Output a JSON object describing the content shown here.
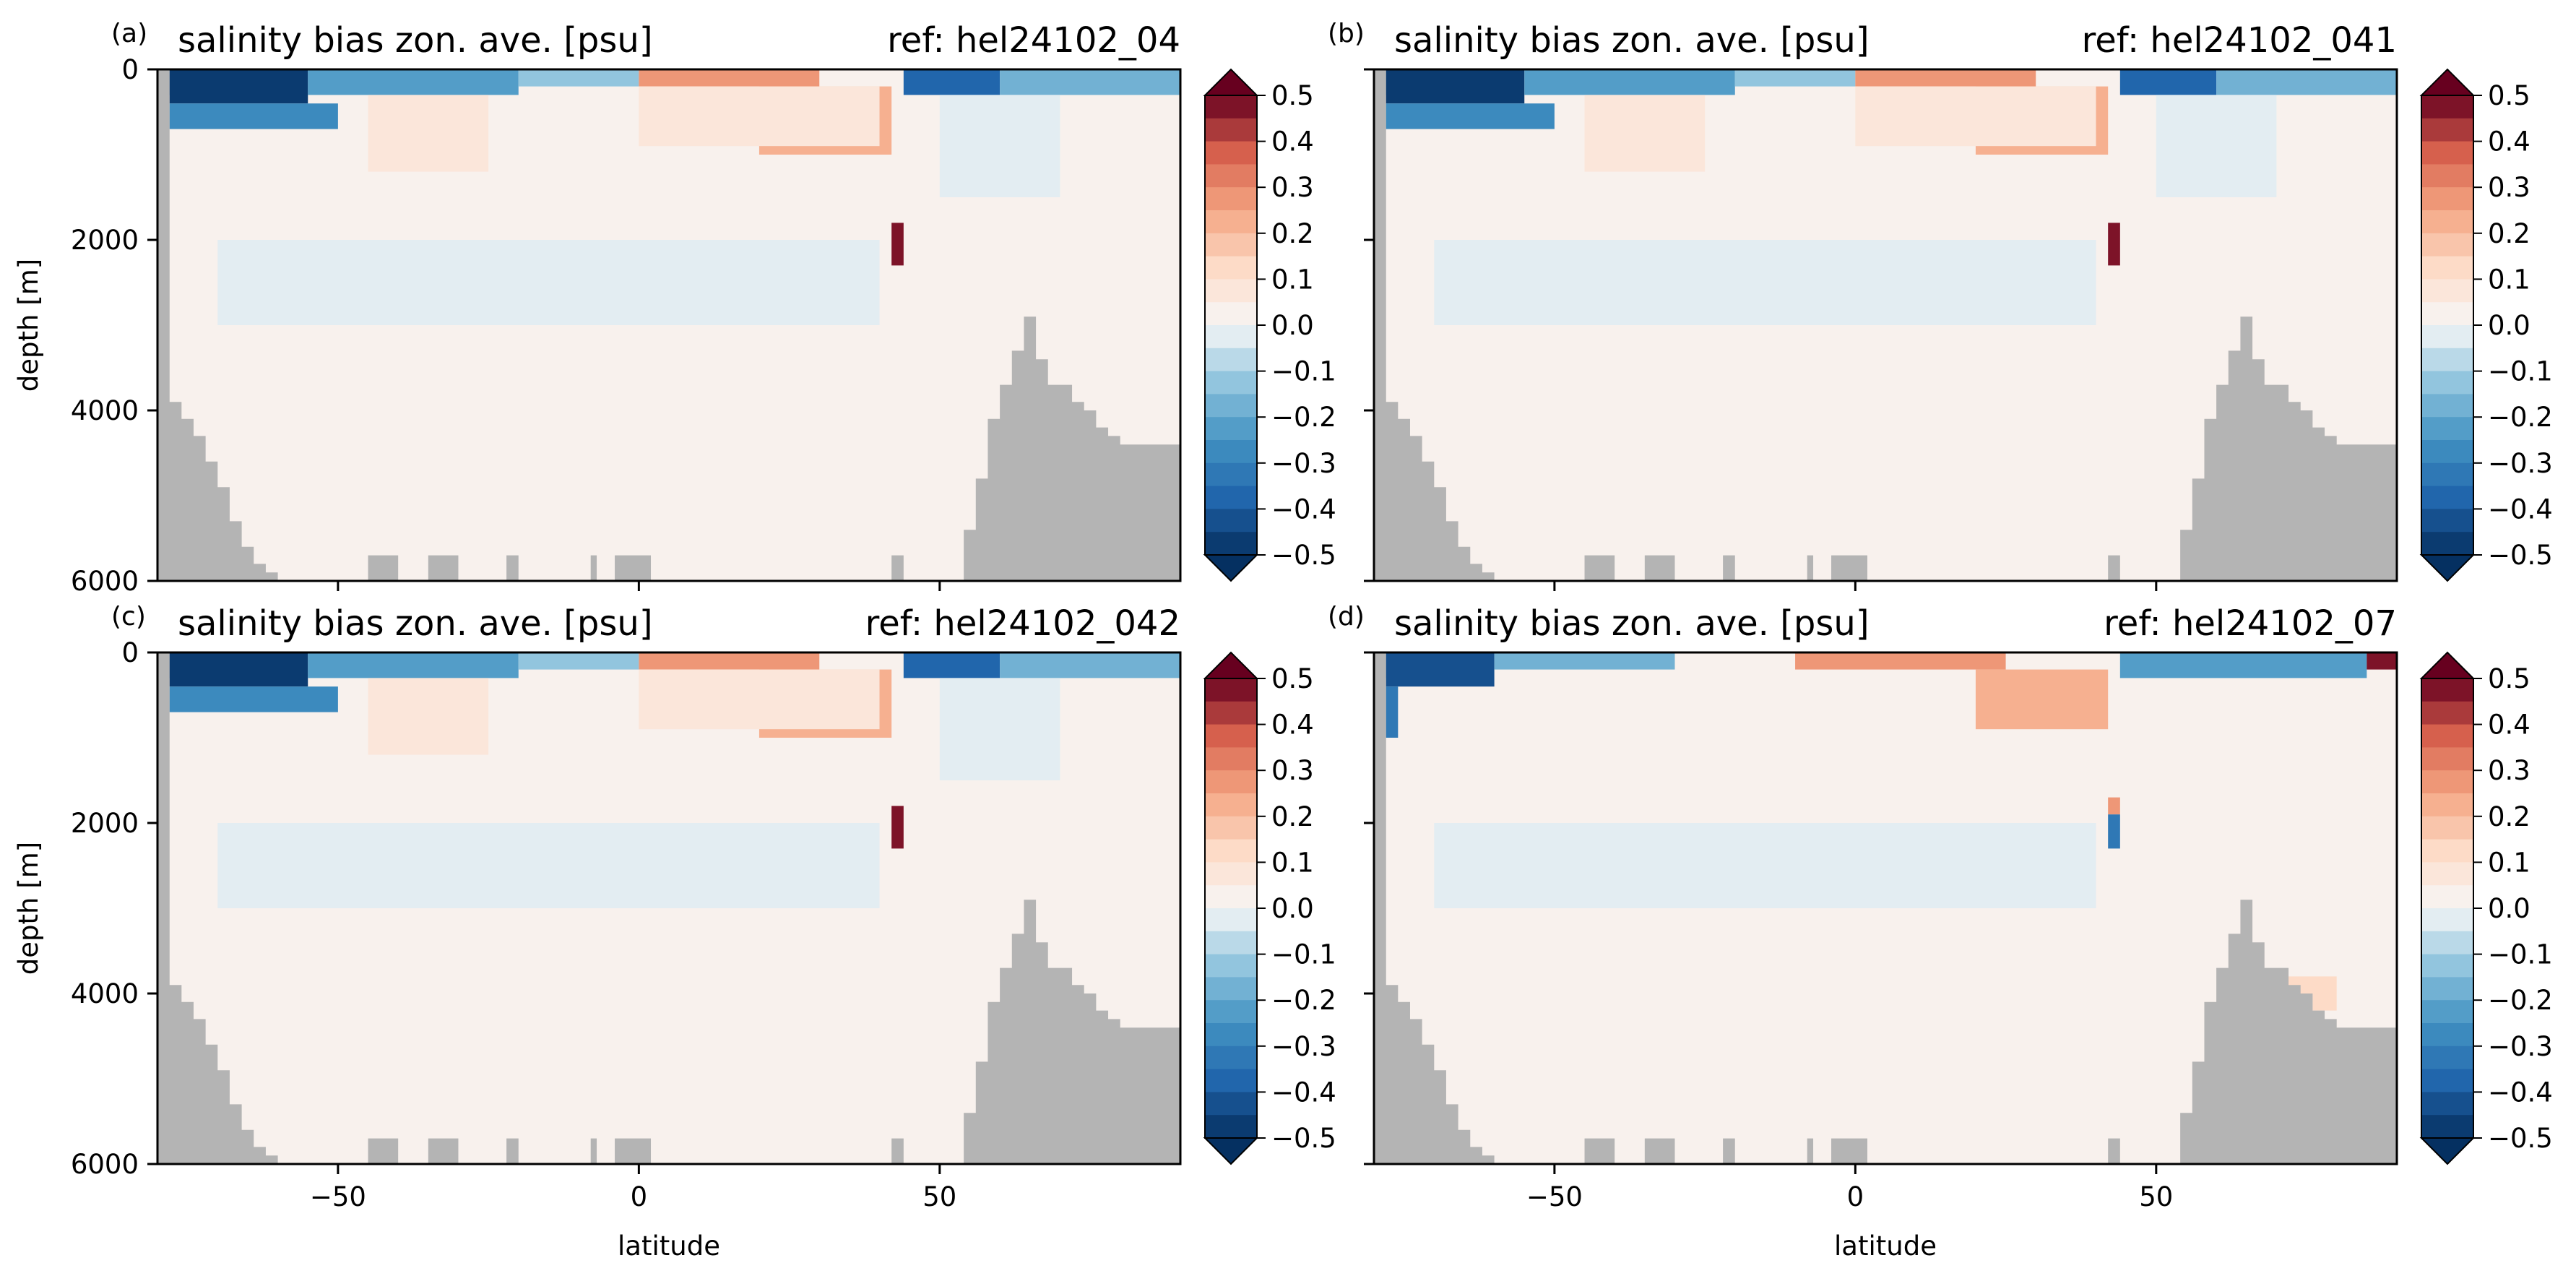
{
  "figure": {
    "shared_xlabel": "latitude",
    "shared_ylabel": "depth [m]"
  },
  "chart_data": [
    {
      "type": "heatmap",
      "panel_label": "(a)",
      "title": "salinity bias zon. ave. [psu]",
      "ref_label": "ref: hel24102_04",
      "xlim": [
        -80,
        90
      ],
      "ylim": [
        0,
        6000
      ],
      "y_inverted": true,
      "x_ticks": [
        -50,
        0,
        50
      ],
      "y_ticks": [
        0,
        2000,
        4000,
        6000
      ],
      "ylabel": "depth [m]",
      "xlabel": "",
      "show_x_ticklabels": false,
      "show_y_ticklabels": true,
      "colorbar": {
        "cmap": "RdBu_r",
        "vmin": -0.5,
        "vmax": 0.5,
        "step": 0.05,
        "extend": "both",
        "ticks": [
          0.5,
          0.4,
          0.3,
          0.2,
          0.1,
          0.0,
          -0.1,
          -0.2,
          -0.3,
          -0.4,
          -0.5
        ],
        "tick_labels": [
          "0.5",
          "0.4",
          "0.3",
          "0.2",
          "0.1",
          "0.0",
          "−0.1",
          "−0.2",
          "−0.3",
          "−0.4",
          "−0.5"
        ]
      },
      "fields": {
        "background_bias": 0.03,
        "deep_negative_band": {
          "lat": [
            -70,
            40
          ],
          "depth": [
            2000,
            3000
          ],
          "value": -0.04
        },
        "bias_regions": [
          {
            "lat": [
              -78,
              -55
            ],
            "depth": [
              0,
              400
            ],
            "value": -0.5
          },
          {
            "lat": [
              -78,
              -50
            ],
            "depth": [
              400,
              700
            ],
            "value": -0.3
          },
          {
            "lat": [
              -55,
              -20
            ],
            "depth": [
              0,
              300
            ],
            "value": -0.25
          },
          {
            "lat": [
              -45,
              -25
            ],
            "depth": [
              300,
              1200
            ],
            "value": 0.08
          },
          {
            "lat": [
              -20,
              0
            ],
            "depth": [
              0,
              200
            ],
            "value": -0.15
          },
          {
            "lat": [
              0,
              30
            ],
            "depth": [
              0,
              200
            ],
            "value": 0.3
          },
          {
            "lat": [
              20,
              42
            ],
            "depth": [
              200,
              1000
            ],
            "value": 0.2
          },
          {
            "lat": [
              0,
              40
            ],
            "depth": [
              200,
              900
            ],
            "value": 0.08
          },
          {
            "lat": [
              42,
              44
            ],
            "depth": [
              1800,
              2300
            ],
            "value": 0.45
          },
          {
            "lat": [
              44,
              60
            ],
            "depth": [
              0,
              300
            ],
            "value": -0.4
          },
          {
            "lat": [
              60,
              90
            ],
            "depth": [
              0,
              300
            ],
            "value": -0.2
          },
          {
            "lat": [
              50,
              70
            ],
            "depth": [
              300,
              1500
            ],
            "value": -0.05
          }
        ]
      },
      "bathymetry_depth_profile": {
        "lat": [
          -80,
          -78,
          -76,
          -74,
          -72,
          -70,
          -68,
          -66,
          -64,
          -62,
          -60,
          -58,
          -56,
          -54,
          -52,
          -50,
          -48,
          52,
          54,
          56,
          58,
          60,
          62,
          64,
          66,
          68,
          70,
          72,
          74,
          76,
          78,
          80,
          82,
          84,
          86,
          88,
          90
        ],
        "depth": [
          0,
          3900,
          4100,
          4300,
          4600,
          4900,
          5300,
          5600,
          5800,
          5900,
          6000,
          6000,
          6000,
          6000,
          6000,
          6000,
          6000,
          6000,
          5400,
          4800,
          4100,
          3700,
          3300,
          2900,
          3400,
          3700,
          3700,
          3900,
          4000,
          4200,
          4300,
          4400,
          4400,
          4400,
          4400,
          4400,
          4400
        ]
      }
    },
    {
      "type": "heatmap",
      "panel_label": "(b)",
      "title": "salinity bias zon. ave. [psu]",
      "ref_label": "ref: hel24102_041",
      "xlim": [
        -80,
        90
      ],
      "ylim": [
        0,
        6000
      ],
      "y_inverted": true,
      "x_ticks": [
        -50,
        0,
        50
      ],
      "y_ticks": [
        0,
        2000,
        4000,
        6000
      ],
      "ylabel": "",
      "xlabel": "",
      "show_x_ticklabels": false,
      "show_y_ticklabels": false,
      "colorbar": {
        "cmap": "RdBu_r",
        "vmin": -0.5,
        "vmax": 0.5,
        "step": 0.05,
        "extend": "both",
        "ticks": [
          0.5,
          0.4,
          0.3,
          0.2,
          0.1,
          0.0,
          -0.1,
          -0.2,
          -0.3,
          -0.4,
          -0.5
        ],
        "tick_labels": [
          "0.5",
          "0.4",
          "0.3",
          "0.2",
          "0.1",
          "0.0",
          "−0.1",
          "−0.2",
          "−0.3",
          "−0.4",
          "−0.5"
        ]
      },
      "fields": {
        "background_bias": 0.03,
        "deep_negative_band": {
          "lat": [
            -70,
            40
          ],
          "depth": [
            2000,
            3000
          ],
          "value": -0.04
        },
        "bias_regions": [
          {
            "lat": [
              -78,
              -55
            ],
            "depth": [
              0,
              400
            ],
            "value": -0.5
          },
          {
            "lat": [
              -78,
              -50
            ],
            "depth": [
              400,
              700
            ],
            "value": -0.3
          },
          {
            "lat": [
              -55,
              -20
            ],
            "depth": [
              0,
              300
            ],
            "value": -0.25
          },
          {
            "lat": [
              -45,
              -25
            ],
            "depth": [
              300,
              1200
            ],
            "value": 0.08
          },
          {
            "lat": [
              -20,
              0
            ],
            "depth": [
              0,
              200
            ],
            "value": -0.15
          },
          {
            "lat": [
              0,
              30
            ],
            "depth": [
              0,
              200
            ],
            "value": 0.3
          },
          {
            "lat": [
              20,
              42
            ],
            "depth": [
              200,
              1000
            ],
            "value": 0.2
          },
          {
            "lat": [
              0,
              40
            ],
            "depth": [
              200,
              900
            ],
            "value": 0.08
          },
          {
            "lat": [
              42,
              44
            ],
            "depth": [
              1800,
              2300
            ],
            "value": 0.45
          },
          {
            "lat": [
              44,
              60
            ],
            "depth": [
              0,
              300
            ],
            "value": -0.4
          },
          {
            "lat": [
              60,
              90
            ],
            "depth": [
              0,
              300
            ],
            "value": -0.2
          },
          {
            "lat": [
              50,
              70
            ],
            "depth": [
              300,
              1500
            ],
            "value": -0.05
          }
        ]
      },
      "bathymetry_depth_profile": {
        "lat": [
          -80,
          -78,
          -76,
          -74,
          -72,
          -70,
          -68,
          -66,
          -64,
          -62,
          -60,
          -58,
          -56,
          -54,
          -52,
          -50,
          -48,
          52,
          54,
          56,
          58,
          60,
          62,
          64,
          66,
          68,
          70,
          72,
          74,
          76,
          78,
          80,
          82,
          84,
          86,
          88,
          90
        ],
        "depth": [
          0,
          3900,
          4100,
          4300,
          4600,
          4900,
          5300,
          5600,
          5800,
          5900,
          6000,
          6000,
          6000,
          6000,
          6000,
          6000,
          6000,
          6000,
          5400,
          4800,
          4100,
          3700,
          3300,
          2900,
          3400,
          3700,
          3700,
          3900,
          4000,
          4200,
          4300,
          4400,
          4400,
          4400,
          4400,
          4400,
          4400
        ]
      }
    },
    {
      "type": "heatmap",
      "panel_label": "(c)",
      "title": "salinity bias zon. ave. [psu]",
      "ref_label": "ref: hel24102_042",
      "xlim": [
        -80,
        90
      ],
      "ylim": [
        0,
        6000
      ],
      "y_inverted": true,
      "x_ticks": [
        -50,
        0,
        50
      ],
      "y_ticks": [
        0,
        2000,
        4000,
        6000
      ],
      "ylabel": "depth [m]",
      "xlabel": "latitude",
      "show_x_ticklabels": true,
      "show_y_ticklabels": true,
      "colorbar": {
        "cmap": "RdBu_r",
        "vmin": -0.5,
        "vmax": 0.5,
        "step": 0.05,
        "extend": "both",
        "ticks": [
          0.5,
          0.4,
          0.3,
          0.2,
          0.1,
          0.0,
          -0.1,
          -0.2,
          -0.3,
          -0.4,
          -0.5
        ],
        "tick_labels": [
          "0.5",
          "0.4",
          "0.3",
          "0.2",
          "0.1",
          "0.0",
          "−0.1",
          "−0.2",
          "−0.3",
          "−0.4",
          "−0.5"
        ]
      },
      "fields": {
        "background_bias": 0.03,
        "deep_negative_band": {
          "lat": [
            -70,
            40
          ],
          "depth": [
            2000,
            3000
          ],
          "value": -0.04
        },
        "bias_regions": [
          {
            "lat": [
              -78,
              -55
            ],
            "depth": [
              0,
              400
            ],
            "value": -0.5
          },
          {
            "lat": [
              -78,
              -50
            ],
            "depth": [
              400,
              700
            ],
            "value": -0.3
          },
          {
            "lat": [
              -55,
              -20
            ],
            "depth": [
              0,
              300
            ],
            "value": -0.25
          },
          {
            "lat": [
              -45,
              -25
            ],
            "depth": [
              300,
              1200
            ],
            "value": 0.08
          },
          {
            "lat": [
              -20,
              0
            ],
            "depth": [
              0,
              200
            ],
            "value": -0.15
          },
          {
            "lat": [
              0,
              30
            ],
            "depth": [
              0,
              200
            ],
            "value": 0.3
          },
          {
            "lat": [
              20,
              42
            ],
            "depth": [
              200,
              1000
            ],
            "value": 0.2
          },
          {
            "lat": [
              0,
              40
            ],
            "depth": [
              200,
              900
            ],
            "value": 0.08
          },
          {
            "lat": [
              42,
              44
            ],
            "depth": [
              1800,
              2300
            ],
            "value": 0.45
          },
          {
            "lat": [
              44,
              60
            ],
            "depth": [
              0,
              300
            ],
            "value": -0.4
          },
          {
            "lat": [
              60,
              90
            ],
            "depth": [
              0,
              300
            ],
            "value": -0.2
          },
          {
            "lat": [
              50,
              70
            ],
            "depth": [
              300,
              1500
            ],
            "value": -0.05
          }
        ]
      },
      "bathymetry_depth_profile": {
        "lat": [
          -80,
          -78,
          -76,
          -74,
          -72,
          -70,
          -68,
          -66,
          -64,
          -62,
          -60,
          -58,
          -56,
          -54,
          -52,
          -50,
          -48,
          52,
          54,
          56,
          58,
          60,
          62,
          64,
          66,
          68,
          70,
          72,
          74,
          76,
          78,
          80,
          82,
          84,
          86,
          88,
          90
        ],
        "depth": [
          0,
          3900,
          4100,
          4300,
          4600,
          4900,
          5300,
          5600,
          5800,
          5900,
          6000,
          6000,
          6000,
          6000,
          6000,
          6000,
          6000,
          6000,
          5400,
          4800,
          4100,
          3700,
          3300,
          2900,
          3400,
          3700,
          3700,
          3900,
          4000,
          4200,
          4300,
          4400,
          4400,
          4400,
          4400,
          4400,
          4400
        ]
      }
    },
    {
      "type": "heatmap",
      "panel_label": "(d)",
      "title": "salinity bias zon. ave. [psu]",
      "ref_label": "ref: hel24102_07",
      "xlim": [
        -80,
        90
      ],
      "ylim": [
        0,
        6000
      ],
      "y_inverted": true,
      "x_ticks": [
        -50,
        0,
        50
      ],
      "y_ticks": [
        0,
        2000,
        4000,
        6000
      ],
      "ylabel": "",
      "xlabel": "latitude",
      "show_x_ticklabels": true,
      "show_y_ticklabels": false,
      "colorbar": {
        "cmap": "RdBu_r",
        "vmin": -0.5,
        "vmax": 0.5,
        "step": 0.05,
        "extend": "both",
        "ticks": [
          0.5,
          0.4,
          0.3,
          0.2,
          0.1,
          0.0,
          -0.1,
          -0.2,
          -0.3,
          -0.4,
          -0.5
        ],
        "tick_labels": [
          "0.5",
          "0.4",
          "0.3",
          "0.2",
          "0.1",
          "0.0",
          "−0.1",
          "−0.2",
          "−0.3",
          "−0.4",
          "−0.5"
        ]
      },
      "fields": {
        "background_bias": 0.03,
        "deep_negative_band": {
          "lat": [
            -70,
            40
          ],
          "depth": [
            2000,
            3000
          ],
          "value": -0.04
        },
        "bias_regions": [
          {
            "lat": [
              -78,
              -60
            ],
            "depth": [
              0,
              400
            ],
            "value": -0.45
          },
          {
            "lat": [
              -78,
              -76
            ],
            "depth": [
              400,
              1000
            ],
            "value": -0.35
          },
          {
            "lat": [
              -60,
              -30
            ],
            "depth": [
              0,
              200
            ],
            "value": -0.2
          },
          {
            "lat": [
              -10,
              25
            ],
            "depth": [
              0,
              200
            ],
            "value": 0.3
          },
          {
            "lat": [
              20,
              42
            ],
            "depth": [
              200,
              900
            ],
            "value": 0.2
          },
          {
            "lat": [
              42,
              44
            ],
            "depth": [
              1700,
              1900
            ],
            "value": 0.3
          },
          {
            "lat": [
              42,
              44
            ],
            "depth": [
              1900,
              2300
            ],
            "value": -0.35
          },
          {
            "lat": [
              44,
              85
            ],
            "depth": [
              0,
              300
            ],
            "value": -0.25
          },
          {
            "lat": [
              85,
              90
            ],
            "depth": [
              0,
              200
            ],
            "value": 0.45
          },
          {
            "lat": [
              68,
              80
            ],
            "depth": [
              3800,
              4200
            ],
            "value": 0.1
          }
        ]
      },
      "bathymetry_depth_profile": {
        "lat": [
          -80,
          -78,
          -76,
          -74,
          -72,
          -70,
          -68,
          -66,
          -64,
          -62,
          -60,
          -58,
          -56,
          -54,
          -52,
          -50,
          -48,
          52,
          54,
          56,
          58,
          60,
          62,
          64,
          66,
          68,
          70,
          72,
          74,
          76,
          78,
          80,
          82,
          84,
          86,
          88,
          90
        ],
        "depth": [
          0,
          3900,
          4100,
          4300,
          4600,
          4900,
          5300,
          5600,
          5800,
          5900,
          6000,
          6000,
          6000,
          6000,
          6000,
          6000,
          6000,
          6000,
          5400,
          4800,
          4100,
          3700,
          3300,
          2900,
          3400,
          3700,
          3700,
          3900,
          4000,
          4200,
          4300,
          4400,
          4400,
          4400,
          4400,
          4400,
          4400
        ]
      }
    }
  ],
  "colors": {
    "land": "#b4b4b4",
    "axes": "#000000"
  }
}
